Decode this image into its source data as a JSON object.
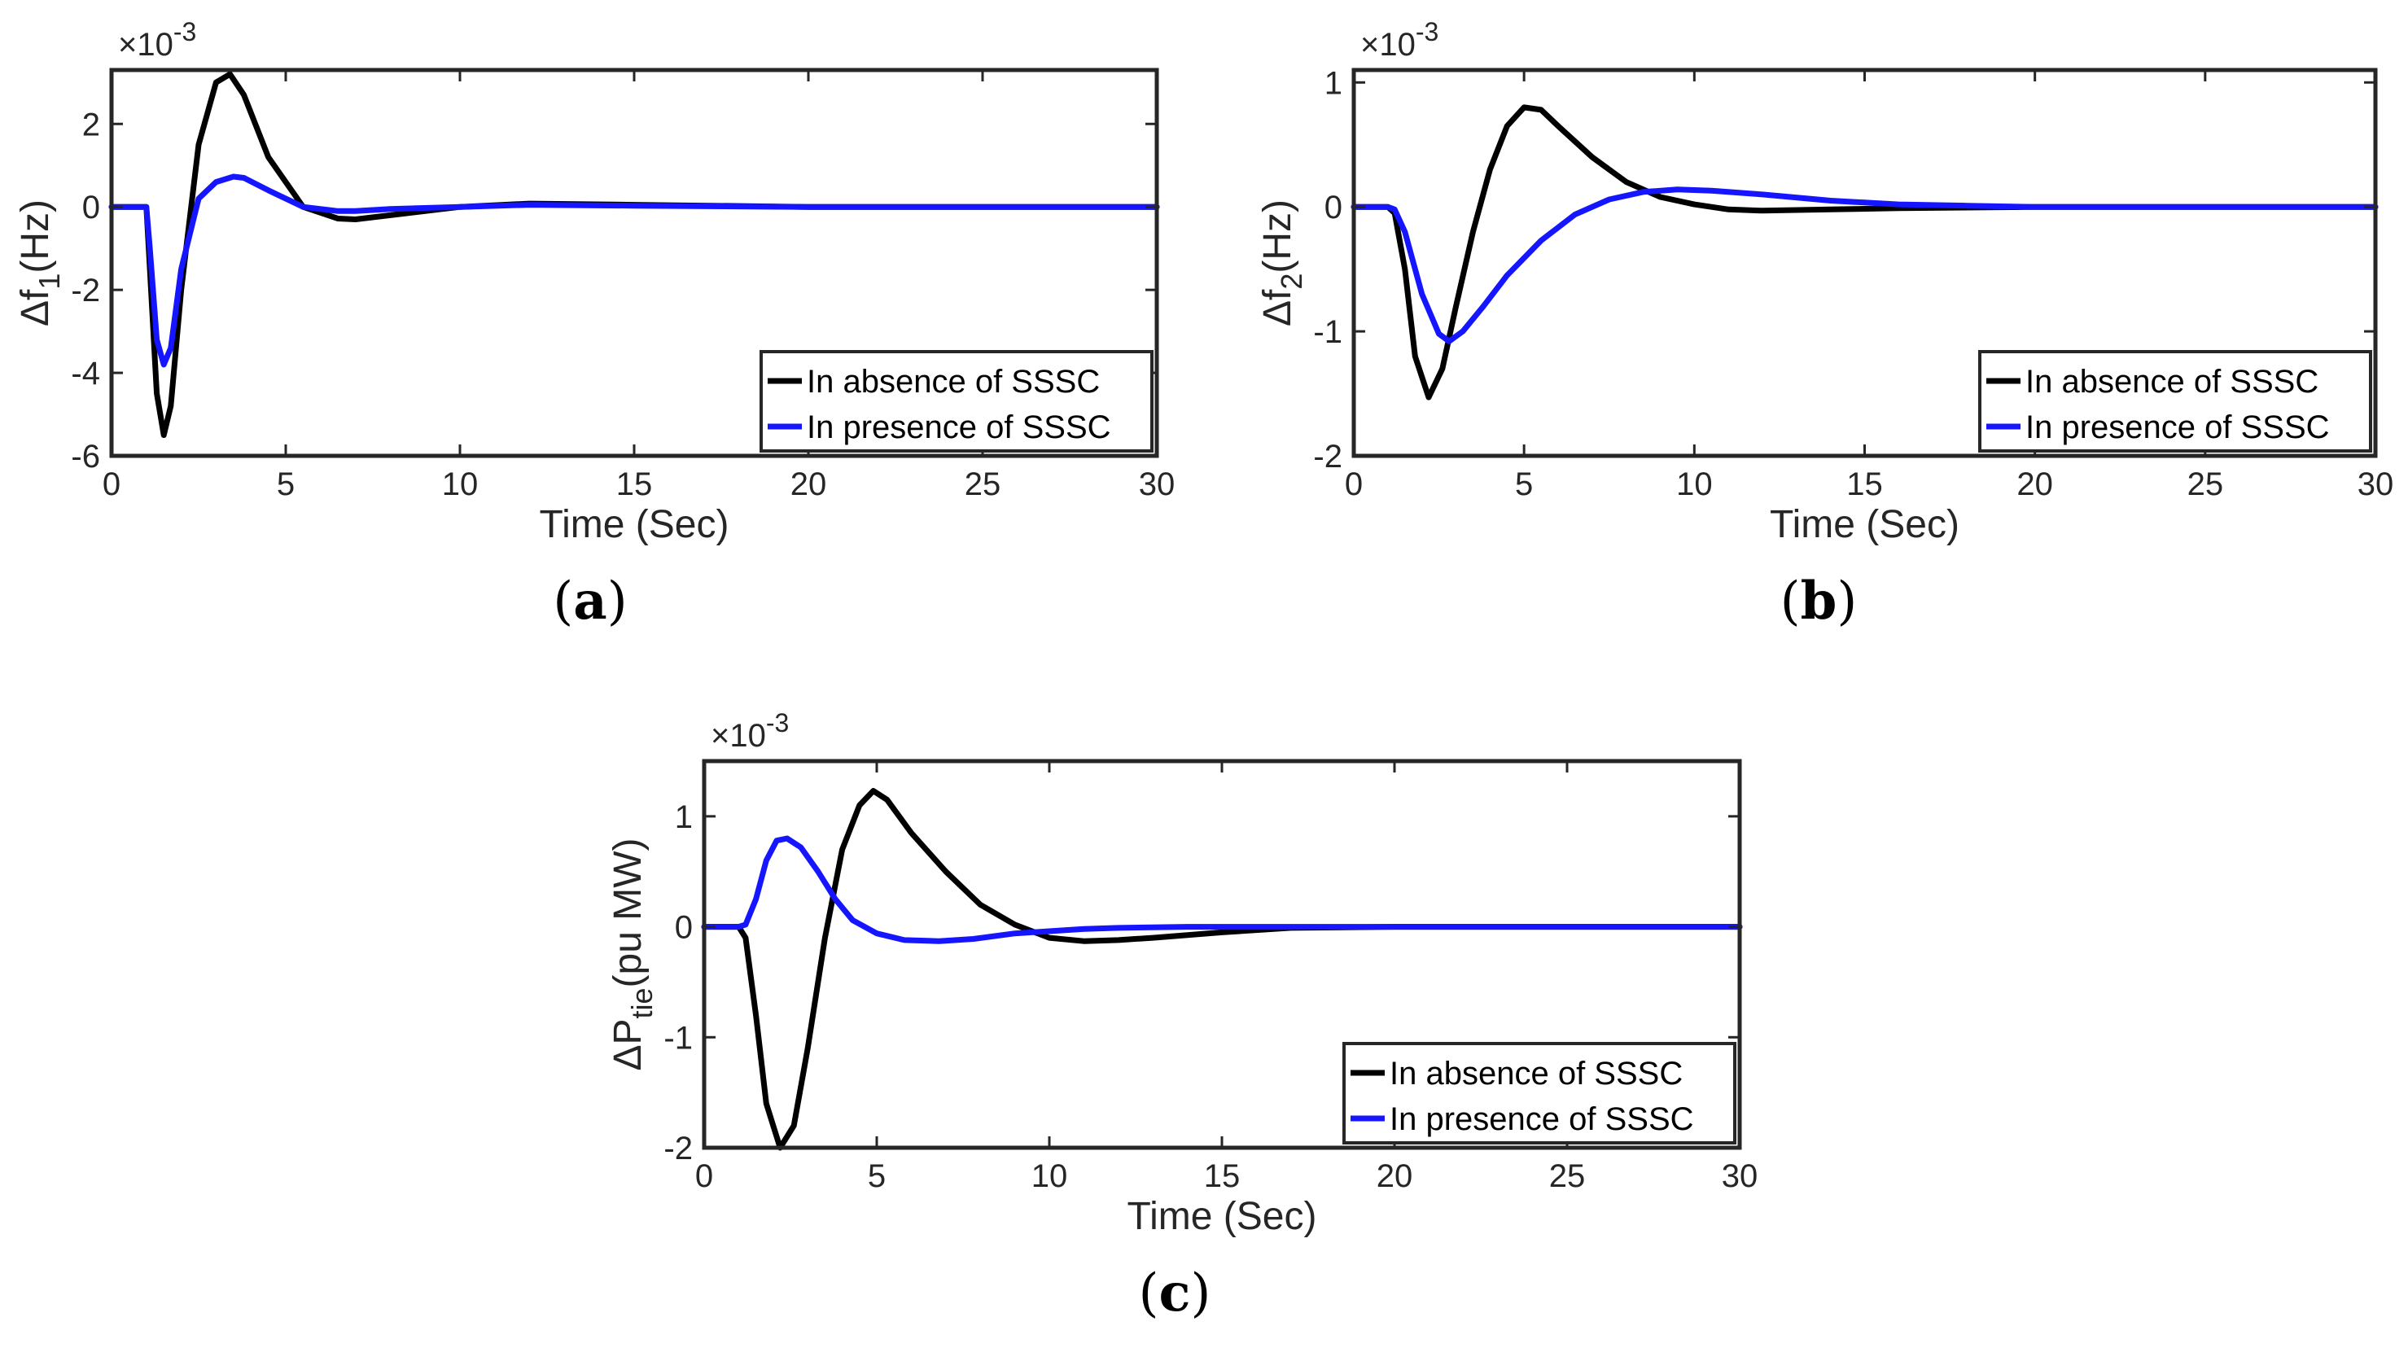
{
  "chart_data": [
    {
      "id": "a",
      "type": "line",
      "caption": "a",
      "xlabel": "Time (Sec)",
      "ylabel_base": "Δf",
      "ylabel_sub": "1",
      "ylabel_unit": "(Hz)",
      "exponent_label": "×10",
      "exponent_power": "-3",
      "xlim": [
        0,
        30
      ],
      "ylim": [
        -6,
        3.3
      ],
      "xticks": [
        0,
        5,
        10,
        15,
        20,
        25,
        30
      ],
      "yticks": [
        -6,
        -4,
        -2,
        0,
        2
      ],
      "legend": [
        "In absence of SSSC",
        "In presence of SSSC"
      ],
      "legend_position": "bottom-right",
      "series": [
        {
          "name": "In absence of SSSC",
          "color": "#000000",
          "x": [
            0,
            1,
            1.1,
            1.3,
            1.5,
            1.7,
            2.0,
            2.5,
            3.0,
            3.4,
            3.8,
            4.5,
            5.5,
            6.5,
            7.0,
            8.0,
            10.0,
            12.0,
            15.0,
            20.0,
            30.0
          ],
          "y": [
            0,
            0,
            -1.5,
            -4.5,
            -5.5,
            -4.8,
            -2.0,
            1.5,
            3.0,
            3.2,
            2.7,
            1.2,
            0,
            -0.28,
            -0.3,
            -0.2,
            0,
            0.08,
            0.05,
            0,
            0
          ]
        },
        {
          "name": "In presence of SSSC",
          "color": "#1515ff",
          "x": [
            0,
            1,
            1.1,
            1.3,
            1.5,
            1.7,
            2.0,
            2.5,
            3.0,
            3.5,
            3.8,
            4.5,
            5.5,
            6.5,
            7.0,
            8.0,
            10.0,
            12.0,
            15.0,
            20.0,
            30.0
          ],
          "y": [
            0,
            0,
            -1.0,
            -3.2,
            -3.8,
            -3.4,
            -1.5,
            0.2,
            0.6,
            0.73,
            0.7,
            0.4,
            0,
            -0.1,
            -0.1,
            -0.05,
            0,
            0.05,
            0.03,
            0,
            0
          ]
        }
      ]
    },
    {
      "id": "b",
      "type": "line",
      "caption": "b",
      "xlabel": "Time (Sec)",
      "ylabel_base": "Δf",
      "ylabel_sub": "2",
      "ylabel_unit": "(Hz)",
      "exponent_label": "×10",
      "exponent_power": "-3",
      "xlim": [
        0,
        30
      ],
      "ylim": [
        -2,
        1.1
      ],
      "xticks": [
        0,
        5,
        10,
        15,
        20,
        25,
        30
      ],
      "yticks": [
        -2,
        -1,
        0,
        1
      ],
      "legend": [
        "In absence of SSSC",
        "In presence of SSSC"
      ],
      "legend_position": "bottom-right",
      "series": [
        {
          "name": "In absence of SSSC",
          "color": "#000000",
          "x": [
            0,
            1,
            1.2,
            1.5,
            1.8,
            2.2,
            2.6,
            3.0,
            3.5,
            4.0,
            4.5,
            5.0,
            5.5,
            6.0,
            7.0,
            8.0,
            9.0,
            10.0,
            11.0,
            12.0,
            14.0,
            16.0,
            20.0,
            30.0
          ],
          "y": [
            0,
            0,
            -0.05,
            -0.5,
            -1.2,
            -1.53,
            -1.3,
            -0.8,
            -0.2,
            0.3,
            0.65,
            0.8,
            0.78,
            0.65,
            0.4,
            0.2,
            0.08,
            0.02,
            -0.02,
            -0.03,
            -0.02,
            -0.01,
            0,
            0
          ]
        },
        {
          "name": "In presence of SSSC",
          "color": "#1515ff",
          "x": [
            0,
            1,
            1.2,
            1.5,
            2.0,
            2.5,
            2.8,
            3.2,
            3.8,
            4.5,
            5.5,
            6.5,
            7.5,
            8.5,
            9.5,
            10.5,
            12.0,
            14.0,
            16.0,
            18.0,
            20.0,
            30.0
          ],
          "y": [
            0,
            0,
            -0.02,
            -0.2,
            -0.7,
            -1.02,
            -1.08,
            -1.0,
            -0.8,
            -0.55,
            -0.27,
            -0.06,
            0.06,
            0.12,
            0.14,
            0.13,
            0.1,
            0.05,
            0.02,
            0.01,
            0,
            0
          ]
        }
      ]
    },
    {
      "id": "c",
      "type": "line",
      "caption": "c",
      "xlabel": "Time (Sec)",
      "ylabel_base": "ΔP",
      "ylabel_sub": "tie",
      "ylabel_unit": "(pu MW)",
      "exponent_label": "×10",
      "exponent_power": "-3",
      "xlim": [
        0,
        30
      ],
      "ylim": [
        -2,
        1.5
      ],
      "xticks": [
        0,
        5,
        10,
        15,
        20,
        25,
        30
      ],
      "yticks": [
        -2,
        -1,
        0,
        1
      ],
      "legend": [
        "In absence of SSSC",
        "In presence of SSSC"
      ],
      "legend_position": "bottom-right",
      "series": [
        {
          "name": "In absence of SSSC",
          "color": "#000000",
          "x": [
            0,
            1,
            1.2,
            1.5,
            1.8,
            2.2,
            2.6,
            3.0,
            3.5,
            4.0,
            4.5,
            4.9,
            5.3,
            6.0,
            7.0,
            8.0,
            9.0,
            10.0,
            11.0,
            12.0,
            13.0,
            15.0,
            17.0,
            20.0,
            30.0
          ],
          "y": [
            0,
            0,
            -0.1,
            -0.8,
            -1.6,
            -2.0,
            -1.8,
            -1.1,
            -0.1,
            0.7,
            1.1,
            1.23,
            1.15,
            0.85,
            0.5,
            0.2,
            0.02,
            -0.1,
            -0.13,
            -0.12,
            -0.1,
            -0.05,
            -0.01,
            0,
            0
          ]
        },
        {
          "name": "In presence of SSSC",
          "color": "#1515ff",
          "x": [
            0,
            1,
            1.2,
            1.5,
            1.8,
            2.1,
            2.4,
            2.8,
            3.3,
            3.8,
            4.3,
            5.0,
            5.8,
            6.8,
            7.8,
            9.0,
            10.0,
            11.0,
            12.0,
            14.0,
            16.0,
            20.0,
            30.0
          ],
          "y": [
            0,
            0,
            0.02,
            0.25,
            0.6,
            0.78,
            0.8,
            0.72,
            0.5,
            0.25,
            0.06,
            -0.06,
            -0.12,
            -0.13,
            -0.11,
            -0.06,
            -0.04,
            -0.02,
            -0.01,
            0,
            0,
            0,
            0
          ]
        }
      ]
    }
  ]
}
